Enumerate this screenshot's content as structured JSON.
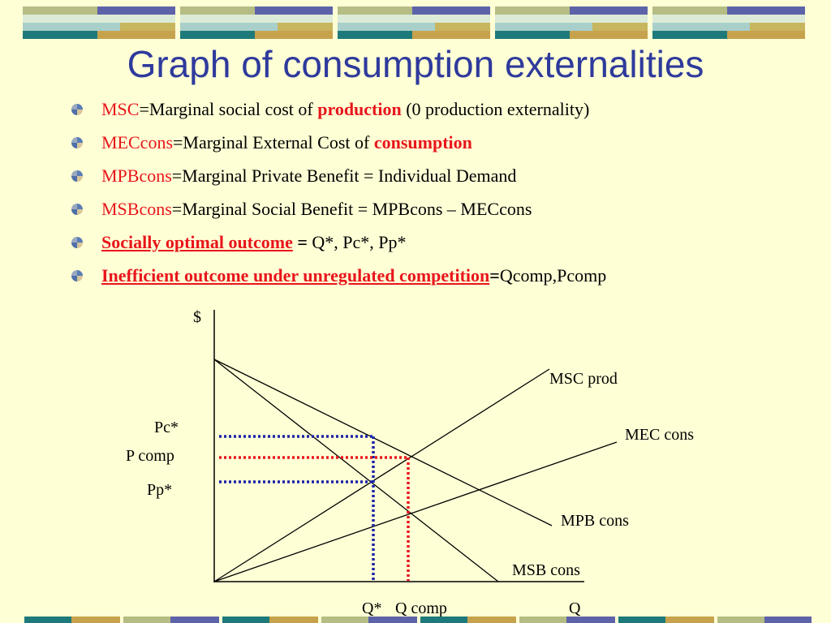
{
  "slide": {
    "title": "Graph of consumption externalities",
    "bullets": [
      {
        "term": "MSC",
        "text1": "=Marginal social cost of ",
        "emph": "production",
        "text2": " (0 production externality)"
      },
      {
        "term": "MECcons",
        "text1": "=Marginal External Cost of ",
        "emph": "consumption"
      },
      {
        "term": "MPBcons",
        "text1": "=Marginal Private Benefit = Individual Demand"
      },
      {
        "term": "MSBcons",
        "text1": "=Marginal Social Benefit = MPBcons – MECcons"
      },
      {
        "term": "Socially optimal outcome",
        "eq": " = ",
        "text1": "Q*, Pc*, Pp*"
      },
      {
        "term": "Inefficient outcome under unregulated competition",
        "eq": "=",
        "text1": "Qcomp,Pcomp"
      }
    ]
  },
  "graph": {
    "y_axis_label": "$",
    "x_axis_label": "Q",
    "curves": {
      "msc": "MSC prod",
      "mec": "MEC cons",
      "mpb": "MPB cons",
      "msb": "MSB cons"
    },
    "price_labels": {
      "pc_star": "Pc*",
      "p_comp": "P comp",
      "pp_star": "Pp*"
    },
    "quantity_labels": {
      "q_star": "Q*",
      "q_comp": "Q comp"
    },
    "colors": {
      "optimal_dotted": "#1A22A8",
      "competitive_dotted": "#E8151B",
      "title": "#2E3A9C",
      "highlight_text": "#E8151B"
    }
  }
}
